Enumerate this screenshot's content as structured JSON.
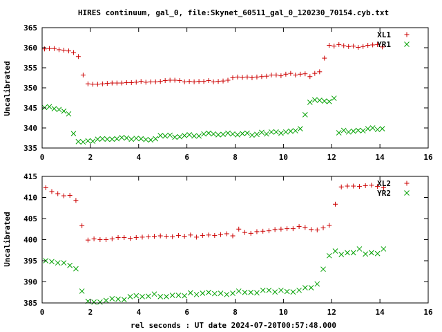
{
  "title": "HIRES continuum, gal_0, file:Skynet_60511_gal_0_120230_70154.cyb.txt",
  "xlabel": "rel seconds : UT date 2024-07-20T00:57:48.000",
  "colors": {
    "red": "#cc0000",
    "green": "#00a000",
    "axis": "#000000"
  },
  "chart_data": [
    {
      "type": "scatter",
      "ylabel": "Uncalibrated",
      "xlim": [
        0,
        16
      ],
      "ylim": [
        335,
        365
      ],
      "xticks": [
        0,
        2,
        4,
        6,
        8,
        10,
        12,
        14,
        16
      ],
      "yticks": [
        335,
        340,
        345,
        350,
        355,
        360,
        365
      ],
      "grid": false,
      "legend": "top-right",
      "series": [
        {
          "name": "XL1",
          "marker": "plus",
          "color": "#cc0000",
          "x": [
            0.1,
            0.3,
            0.5,
            0.7,
            0.9,
            1.1,
            1.3,
            1.5,
            1.7,
            1.9,
            2.1,
            2.3,
            2.5,
            2.7,
            2.9,
            3.1,
            3.3,
            3.5,
            3.7,
            3.9,
            4.1,
            4.3,
            4.5,
            4.7,
            4.9,
            5.1,
            5.3,
            5.5,
            5.7,
            5.9,
            6.1,
            6.3,
            6.5,
            6.7,
            6.9,
            7.1,
            7.3,
            7.5,
            7.7,
            7.9,
            8.1,
            8.3,
            8.5,
            8.7,
            8.9,
            9.1,
            9.3,
            9.5,
            9.7,
            9.9,
            10.1,
            10.3,
            10.5,
            10.7,
            10.9,
            11.1,
            11.3,
            11.5,
            11.7,
            11.9,
            12.1,
            12.3,
            12.5,
            12.7,
            12.9,
            13.1,
            13.3,
            13.5,
            13.7,
            13.9,
            14.1
          ],
          "y": [
            359.7,
            359.8,
            359.8,
            359.5,
            359.4,
            359.2,
            358.8,
            357.8,
            353.2,
            351.0,
            350.9,
            350.9,
            351.0,
            351.1,
            351.2,
            351.2,
            351.2,
            351.3,
            351.3,
            351.4,
            351.6,
            351.4,
            351.5,
            351.5,
            351.6,
            351.8,
            351.9,
            351.9,
            351.8,
            351.5,
            351.6,
            351.5,
            351.6,
            351.6,
            351.8,
            351.5,
            351.6,
            351.7,
            351.9,
            352.5,
            352.7,
            352.6,
            352.7,
            352.5,
            352.7,
            352.8,
            352.9,
            353.2,
            353.2,
            353.0,
            353.4,
            353.6,
            353.2,
            353.4,
            353.5,
            352.8,
            353.6,
            354.0,
            357.4,
            360.6,
            360.4,
            360.8,
            360.5,
            360.3,
            360.4,
            360.1,
            360.3,
            360.6,
            360.7,
            360.8,
            360.2
          ]
        },
        {
          "name": "YR1",
          "marker": "cross",
          "color": "#00a000",
          "x": [
            0.1,
            0.3,
            0.5,
            0.7,
            0.9,
            1.1,
            1.3,
            1.5,
            1.7,
            1.9,
            2.1,
            2.3,
            2.5,
            2.7,
            2.9,
            3.1,
            3.3,
            3.5,
            3.7,
            3.9,
            4.1,
            4.3,
            4.5,
            4.7,
            4.9,
            5.1,
            5.3,
            5.5,
            5.7,
            5.9,
            6.1,
            6.3,
            6.5,
            6.7,
            6.9,
            7.1,
            7.3,
            7.5,
            7.7,
            7.9,
            8.1,
            8.3,
            8.5,
            8.7,
            8.9,
            9.1,
            9.3,
            9.5,
            9.7,
            9.9,
            10.1,
            10.3,
            10.5,
            10.7,
            10.9,
            11.1,
            11.3,
            11.5,
            11.7,
            11.9,
            12.1,
            12.3,
            12.5,
            12.7,
            12.9,
            13.1,
            13.3,
            13.5,
            13.7,
            13.9,
            14.1
          ],
          "y": [
            345.1,
            345.3,
            344.8,
            344.6,
            344.2,
            343.5,
            338.6,
            336.6,
            336.5,
            336.8,
            336.7,
            337.2,
            337.3,
            337.2,
            337.2,
            337.3,
            337.6,
            337.5,
            337.2,
            337.4,
            337.3,
            337.1,
            337.0,
            337.3,
            338.1,
            338.0,
            338.2,
            337.7,
            337.8,
            338.1,
            338.3,
            338.0,
            338.0,
            338.5,
            338.7,
            338.5,
            338.3,
            338.4,
            338.7,
            338.5,
            338.3,
            338.6,
            338.7,
            338.2,
            338.4,
            338.9,
            338.5,
            339.0,
            339.0,
            338.7,
            339.0,
            339.2,
            339.3,
            339.8,
            343.3,
            346.4,
            347.0,
            346.9,
            346.7,
            346.6,
            347.4,
            338.8,
            339.4,
            339.0,
            339.2,
            339.4,
            339.3,
            339.8,
            340.0,
            339.6,
            339.8
          ]
        }
      ]
    },
    {
      "type": "scatter",
      "ylabel": "Uncalibrated",
      "xlim": [
        0,
        16
      ],
      "ylim": [
        385,
        415
      ],
      "xticks": [
        0,
        2,
        4,
        6,
        8,
        10,
        12,
        14,
        16
      ],
      "yticks": [
        385,
        390,
        395,
        400,
        405,
        410,
        415
      ],
      "grid": false,
      "legend": "top-right",
      "series": [
        {
          "name": "XL2",
          "marker": "plus",
          "color": "#cc0000",
          "x": [
            0.15,
            0.4,
            0.65,
            0.9,
            1.15,
            1.4,
            1.65,
            1.9,
            2.15,
            2.4,
            2.65,
            2.9,
            3.15,
            3.4,
            3.65,
            3.9,
            4.15,
            4.4,
            4.65,
            4.9,
            5.15,
            5.4,
            5.65,
            5.9,
            6.15,
            6.4,
            6.65,
            6.9,
            7.15,
            7.4,
            7.65,
            7.9,
            8.15,
            8.4,
            8.65,
            8.9,
            9.15,
            9.4,
            9.65,
            9.9,
            10.15,
            10.4,
            10.65,
            10.9,
            11.15,
            11.4,
            11.65,
            11.9,
            12.15,
            12.4,
            12.65,
            12.9,
            13.15,
            13.4,
            13.65,
            13.9,
            14.15
          ],
          "y": [
            412.3,
            411.4,
            410.9,
            410.4,
            410.5,
            409.3,
            403.3,
            399.9,
            400.2,
            400.0,
            400.0,
            400.2,
            400.5,
            400.5,
            400.3,
            400.5,
            400.6,
            400.7,
            400.8,
            400.9,
            400.8,
            400.7,
            401.0,
            400.8,
            401.1,
            400.6,
            401.0,
            401.1,
            401.0,
            401.2,
            401.4,
            400.9,
            402.5,
            401.7,
            401.5,
            401.9,
            402.0,
            402.1,
            402.4,
            402.5,
            402.6,
            402.6,
            403.1,
            402.9,
            402.4,
            402.3,
            402.8,
            403.4,
            408.4,
            412.5,
            412.7,
            412.7,
            412.6,
            412.8,
            412.9,
            412.6,
            412.3
          ]
        },
        {
          "name": "YR2",
          "marker": "cross",
          "color": "#00a000",
          "x": [
            0.15,
            0.4,
            0.65,
            0.9,
            1.15,
            1.4,
            1.65,
            1.9,
            2.15,
            2.4,
            2.65,
            2.9,
            3.15,
            3.4,
            3.65,
            3.9,
            4.15,
            4.4,
            4.65,
            4.9,
            5.15,
            5.4,
            5.65,
            5.9,
            6.15,
            6.4,
            6.65,
            6.9,
            7.15,
            7.4,
            7.65,
            7.9,
            8.15,
            8.4,
            8.65,
            8.9,
            9.15,
            9.4,
            9.65,
            9.9,
            10.15,
            10.4,
            10.65,
            10.9,
            11.15,
            11.4,
            11.65,
            11.9,
            12.15,
            12.4,
            12.65,
            12.9,
            13.15,
            13.4,
            13.65,
            13.9,
            14.15
          ],
          "y": [
            395.0,
            394.8,
            394.5,
            394.5,
            393.9,
            393.1,
            387.8,
            385.4,
            385.2,
            385.2,
            385.6,
            386.0,
            385.9,
            385.8,
            386.5,
            386.7,
            386.5,
            386.6,
            387.1,
            386.5,
            386.5,
            386.8,
            386.8,
            386.7,
            387.4,
            387.0,
            387.3,
            387.5,
            387.2,
            387.3,
            387.0,
            387.3,
            387.8,
            387.5,
            387.5,
            387.4,
            388.0,
            388.0,
            387.6,
            388.0,
            387.7,
            387.6,
            388.0,
            388.6,
            388.6,
            389.5,
            393.0,
            396.2,
            397.3,
            396.5,
            396.9,
            396.9,
            397.8,
            396.6,
            396.9,
            396.7,
            397.8
          ]
        }
      ]
    }
  ]
}
